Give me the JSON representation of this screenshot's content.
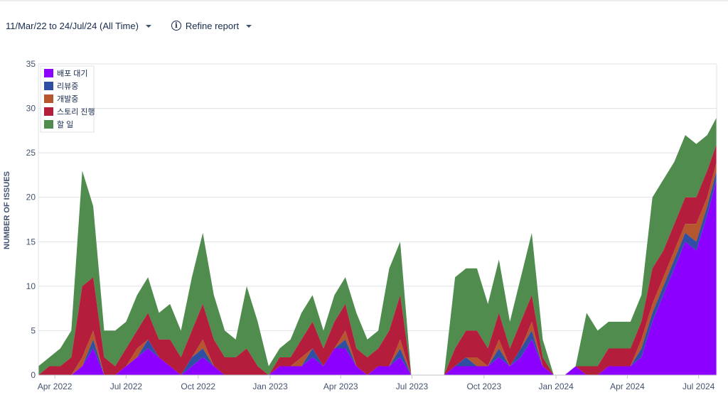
{
  "toolbar": {
    "date_range_label": "11/Mar/22 to 24/Jul/24 (All Time)",
    "refine_label": "Refine report"
  },
  "colors": {
    "배포 대기": "#8b00ff",
    "리뷰중": "#2f4fa2",
    "개발중": "#b5562e",
    "스토리 진행": "#b41e3c",
    "할 일": "#4f8c4e"
  },
  "chart_data": {
    "type": "area",
    "stacked": true,
    "ylabel": "NUMBER OF ISSUES",
    "ylim": [
      0,
      35
    ],
    "yticks": [
      0,
      5,
      10,
      15,
      20,
      25,
      30,
      35
    ],
    "xlim": [
      "2022-03-11",
      "2024-07-24"
    ],
    "xticks": [
      "2022-04-01",
      "2022-07-01",
      "2022-10-01",
      "2023-01-01",
      "2023-04-01",
      "2023-07-01",
      "2023-10-01",
      "2024-01-01",
      "2024-04-01",
      "2024-07-01"
    ],
    "xtick_labels": [
      "Apr 2022",
      "Jul 2022",
      "Oct 2022",
      "Jan 2023",
      "Apr 2023",
      "Jul 2023",
      "Oct 2023",
      "Jan 2024",
      "Apr 2024",
      "Jul 2024"
    ],
    "grid": true,
    "legend_position": "top-left",
    "legend": [
      "배포 대기",
      "리뷰중",
      "개발중",
      "스토리 진행",
      "할 일"
    ],
    "x": [
      "2022-03-11",
      "2022-03-25",
      "2022-04-08",
      "2022-04-22",
      "2022-05-06",
      "2022-05-20",
      "2022-06-03",
      "2022-06-17",
      "2022-07-01",
      "2022-07-15",
      "2022-07-29",
      "2022-08-12",
      "2022-08-26",
      "2022-09-09",
      "2022-09-23",
      "2022-10-07",
      "2022-10-21",
      "2022-11-04",
      "2022-11-18",
      "2022-12-02",
      "2022-12-16",
      "2022-12-30",
      "2023-01-13",
      "2023-01-27",
      "2023-02-10",
      "2023-02-24",
      "2023-03-10",
      "2023-03-24",
      "2023-04-07",
      "2023-04-21",
      "2023-05-05",
      "2023-05-19",
      "2023-06-02",
      "2023-06-16",
      "2023-06-30",
      "2023-07-14",
      "2023-07-28",
      "2023-08-11",
      "2023-08-25",
      "2023-09-08",
      "2023-09-22",
      "2023-10-06",
      "2023-10-20",
      "2023-11-03",
      "2023-11-17",
      "2023-12-01",
      "2023-12-15",
      "2023-12-29",
      "2024-01-12",
      "2024-01-26",
      "2024-02-09",
      "2024-02-23",
      "2024-03-08",
      "2024-03-22",
      "2024-04-05",
      "2024-04-19",
      "2024-05-03",
      "2024-05-17",
      "2024-05-31",
      "2024-06-14",
      "2024-06-28",
      "2024-07-12",
      "2024-07-24"
    ],
    "series": [
      {
        "name": "배포 대기",
        "values": [
          0,
          0,
          0,
          0,
          1,
          3,
          0,
          0,
          1,
          2,
          3,
          2,
          1,
          0,
          1,
          2,
          1,
          0,
          0,
          0,
          0,
          0,
          1,
          1,
          1,
          2,
          1,
          3,
          3,
          1,
          0,
          1,
          1,
          2,
          0,
          0,
          0,
          0,
          1,
          1,
          1,
          1,
          2,
          1,
          2,
          4,
          1,
          0,
          0,
          1,
          0,
          0,
          1,
          1,
          1,
          2,
          6,
          9,
          12,
          15,
          14,
          18,
          22
        ]
      },
      {
        "name": "리뷰중",
        "values": [
          0,
          0,
          0,
          0,
          0,
          1,
          0,
          0,
          0,
          0,
          1,
          0,
          0,
          0,
          1,
          1,
          0,
          0,
          0,
          0,
          0,
          0,
          0,
          0,
          0,
          1,
          0,
          0,
          1,
          0,
          0,
          0,
          0,
          1,
          0,
          0,
          0,
          0,
          0,
          1,
          0,
          0,
          1,
          0,
          1,
          1,
          0,
          0,
          0,
          0,
          0,
          0,
          0,
          0,
          0,
          1,
          1,
          1,
          1,
          1,
          1,
          1,
          1
        ]
      },
      {
        "name": "개발중",
        "values": [
          0,
          0,
          0,
          0,
          1,
          1,
          0,
          0,
          0,
          1,
          0,
          0,
          0,
          0,
          0,
          1,
          0,
          0,
          0,
          0,
          0,
          0,
          0,
          0,
          1,
          0,
          0,
          0,
          1,
          0,
          0,
          0,
          0,
          1,
          0,
          0,
          0,
          0,
          0,
          0,
          1,
          0,
          1,
          0,
          0,
          1,
          0,
          0,
          0,
          0,
          0,
          0,
          0,
          0,
          0,
          1,
          1,
          1,
          1,
          1,
          2,
          1,
          1
        ]
      },
      {
        "name": "스토리 진행",
        "values": [
          0,
          1,
          1,
          2,
          8,
          6,
          2,
          1,
          2,
          2,
          3,
          2,
          3,
          2,
          3,
          4,
          3,
          2,
          2,
          3,
          1,
          0,
          1,
          1,
          2,
          3,
          2,
          3,
          3,
          2,
          2,
          2,
          4,
          5,
          0,
          0,
          0,
          0,
          2,
          3,
          3,
          2,
          3,
          2,
          3,
          3,
          1,
          0,
          0,
          0,
          1,
          1,
          2,
          2,
          2,
          2,
          4,
          3,
          3,
          3,
          3,
          3,
          2
        ]
      },
      {
        "name": "할 일",
        "values": [
          1,
          1,
          2,
          3,
          13,
          8,
          3,
          4,
          3,
          4,
          4,
          3,
          4,
          3,
          6,
          8,
          5,
          3,
          2,
          7,
          5,
          1,
          1,
          2,
          3,
          3,
          2,
          3,
          3,
          4,
          2,
          2,
          7,
          6,
          0,
          0,
          0,
          0,
          8,
          7,
          7,
          5,
          6,
          3,
          5,
          7,
          2,
          0,
          0,
          0,
          6,
          4,
          3,
          3,
          3,
          3,
          8,
          8,
          7,
          7,
          6,
          4,
          3
        ]
      }
    ]
  }
}
